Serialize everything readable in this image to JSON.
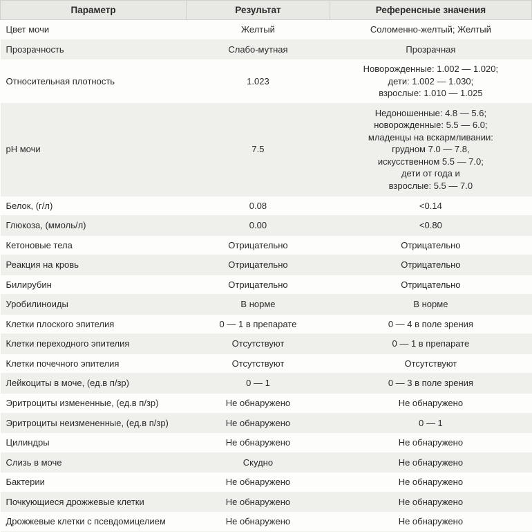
{
  "table": {
    "columns": [
      "Параметр",
      "Результат",
      "Референсные значения"
    ],
    "column_widths": [
      "35%",
      "27%",
      "38%"
    ],
    "header_bg": "#e8e8e5",
    "row_bg_odd": "#fdfdfb",
    "row_bg_even": "#efefec",
    "border_color": "#d0d0cd",
    "font_family": "Arial",
    "font_size_header": 13.5,
    "font_size_body": 13,
    "text_color": "#2a2a2a",
    "rows": [
      {
        "param": "Цвет мочи",
        "result": "Желтый",
        "ref": "Соломенно-желтый; Желтый"
      },
      {
        "param": "Прозрачность",
        "result": "Слабо-мутная",
        "ref": "Прозрачная"
      },
      {
        "param": "Относительная плотность",
        "result": "1.023",
        "ref": "Новорожденные: 1.002 — 1.020;\nдети: 1.002 — 1.030;\nвзрослые: 1.010 — 1.025"
      },
      {
        "param": "pH мочи",
        "result": "7.5",
        "ref": "Недоношенные: 4.8 — 5.6;\nноворожденные: 5.5 — 6.0;\nмладенцы на вскармливании:\nгрудном 7.0 — 7.8,\nискусственном 5.5 — 7.0;\nдети от года и\nвзрослые: 5.5 — 7.0"
      },
      {
        "param": "Белок, (г/л)",
        "result": "0.08",
        "ref": "<0.14"
      },
      {
        "param": "Глюкоза, (ммоль/л)",
        "result": "0.00",
        "ref": "<0.80"
      },
      {
        "param": "Кетоновые тела",
        "result": "Отрицательно",
        "ref": "Отрицательно"
      },
      {
        "param": "Реакция на кровь",
        "result": "Отрицательно",
        "ref": "Отрицательно"
      },
      {
        "param": "Билирубин",
        "result": "Отрицательно",
        "ref": "Отрицательно"
      },
      {
        "param": "Уробилиноиды",
        "result": "В норме",
        "ref": "В норме"
      },
      {
        "param": "Клетки плоского эпителия",
        "result": "0 — 1 в препарате",
        "ref": "0 — 4 в поле зрения"
      },
      {
        "param": "Клетки переходного эпителия",
        "result": "Отсутствуют",
        "ref": "0 — 1 в препарате"
      },
      {
        "param": "Клетки почечного эпителия",
        "result": "Отсутствуют",
        "ref": "Отсутствуют"
      },
      {
        "param": "Лейкоциты в моче, (ед.в п/зр)",
        "result": "0 — 1",
        "ref": "0 — 3 в поле зрения"
      },
      {
        "param": "Эритроциты измененные, (ед.в п/зр)",
        "result": "Не обнаружено",
        "ref": "Не обнаружено"
      },
      {
        "param": "Эритроциты неизмененные, (ед.в п/зр)",
        "result": "Не обнаружено",
        "ref": "0 — 1"
      },
      {
        "param": "Цилиндры",
        "result": "Не обнаружено",
        "ref": "Не обнаружено"
      },
      {
        "param": "Слизь в моче",
        "result": "Скудно",
        "ref": "Не обнаружено"
      },
      {
        "param": "Бактерии",
        "result": "Не обнаружено",
        "ref": "Не обнаружено"
      },
      {
        "param": "Почкующиеся дрожжевые клетки",
        "result": "Не обнаружено",
        "ref": "Не обнаружено"
      },
      {
        "param": "Дрожжевые клетки с псевдомицелием",
        "result": "Не обнаружено",
        "ref": "Не обнаружено"
      }
    ]
  }
}
